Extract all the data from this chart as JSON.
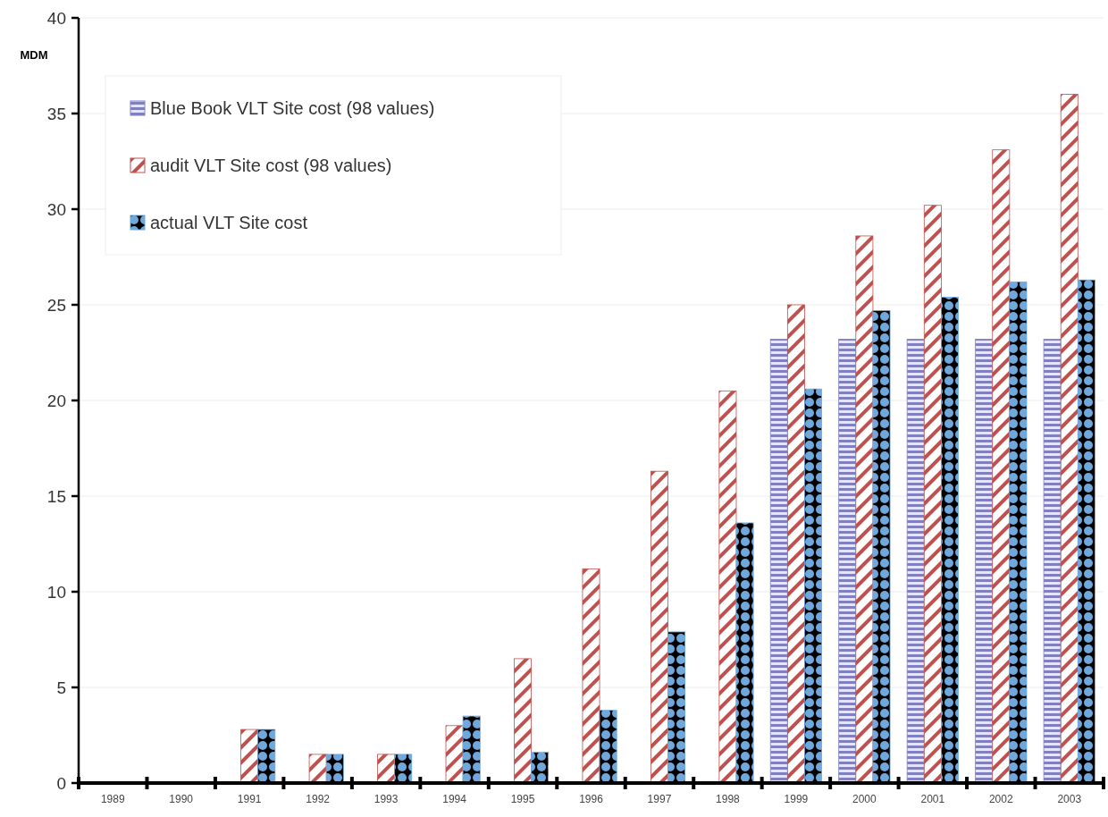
{
  "chart_data": {
    "type": "bar",
    "ylabel": "MDM",
    "categories": [
      "1989",
      "1990",
      "1991",
      "1992",
      "1993",
      "1994",
      "1995",
      "1996",
      "1997",
      "1998",
      "1999",
      "2000",
      "2001",
      "2002",
      "2003"
    ],
    "series": [
      {
        "name": "Blue Book VLT Site cost (98 values)",
        "color": "#8080c0",
        "values": [
          null,
          null,
          null,
          null,
          null,
          null,
          null,
          null,
          null,
          null,
          23.2,
          23.2,
          23.2,
          23.2,
          23.2
        ]
      },
      {
        "name": "audit VLT Site cost (98 values)",
        "color": "#c0504d",
        "values": [
          null,
          null,
          2.8,
          1.5,
          1.5,
          3.0,
          6.5,
          11.2,
          16.3,
          20.5,
          25.0,
          28.6,
          30.2,
          33.1,
          36.0
        ]
      },
      {
        "name": "actual VLT Site cost",
        "color": "#6fa8dc",
        "values": [
          null,
          null,
          2.8,
          1.5,
          1.5,
          3.5,
          1.6,
          3.8,
          7.9,
          13.6,
          20.6,
          24.7,
          25.4,
          26.2,
          26.3
        ]
      }
    ],
    "ylim": [
      0,
      40
    ],
    "yticks": [
      0,
      5,
      10,
      15,
      20,
      25,
      30,
      35,
      40
    ],
    "grid": "y",
    "legend": "top left"
  }
}
